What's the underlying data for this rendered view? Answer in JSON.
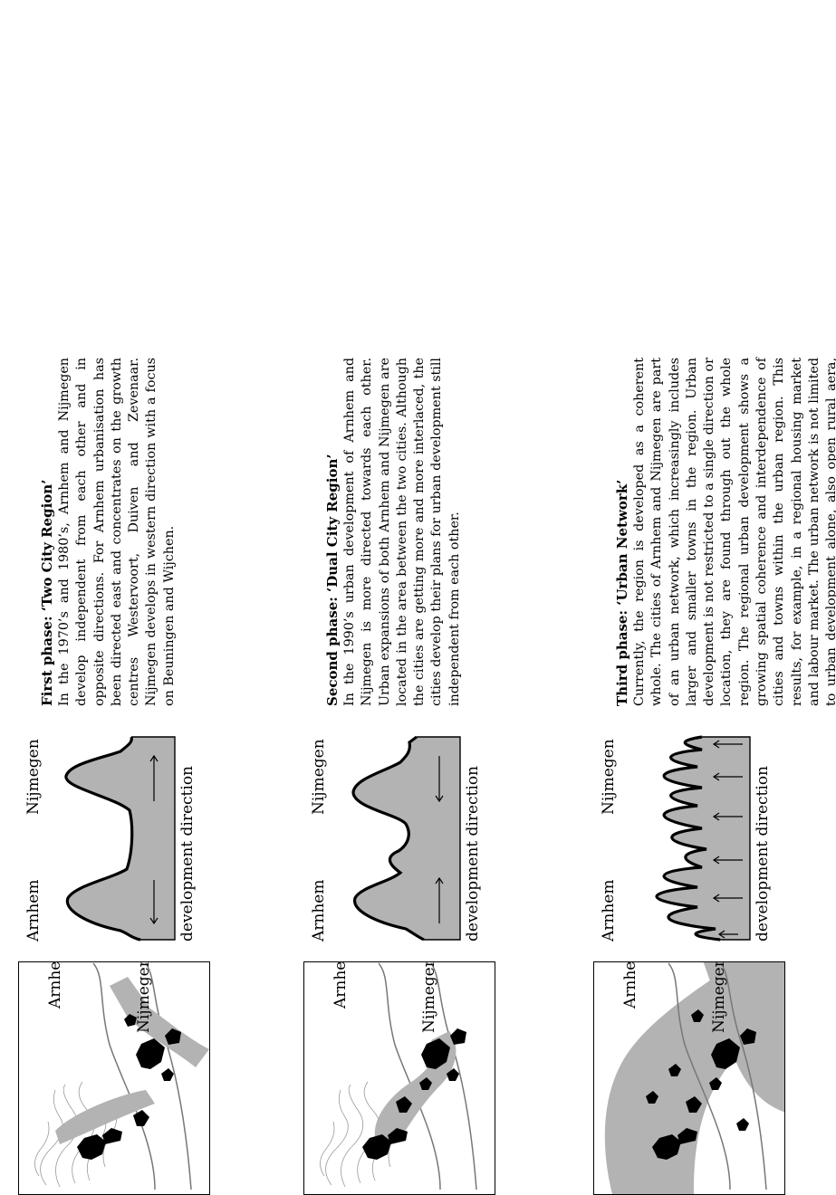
{
  "phases": [
    {
      "title": "First phase: ‘Two City Region’",
      "text": "In the 1970’s and 1980’s, Arnhem and Nijmegen develop independent from each other and in opposite directions. For Arnhem urbanisation has been directed east and concentrates on the growth centres Westervoort, Duiven and Zevenaar. Nijmegen develops in western direction with a focus on Beuningen and Wijchen.",
      "map_labels": [
        "Arnhem",
        "Nijmegen"
      ],
      "profile_labels": [
        "Arnhem",
        "Nijmegen"
      ],
      "caption": "development direction"
    },
    {
      "title": "Second phase: ‘Dual City Region’",
      "text": "In the 1990’s urban development of Arnhem and Nijmegen is more directed towards each other. Urban expansions of both Arnhem and Nijmegen are located in the area between the two cities. Although the cities are getting more and more interlaced, the cities develop their plans for urban development still independent from each other.",
      "map_labels": [
        "Arnhem",
        "Nijmegen"
      ],
      "profile_labels": [
        "Arnhem",
        "Nijmegen"
      ],
      "caption": "development direction"
    },
    {
      "title": "Third phase: ‘Urban Network’",
      "text": "Currently, the region is developed as a coherent whole. The cities of Arnhem and Nijmegen are part of an urban network, which increasingly includes larger and smaller towns in the region. Urban development is not restricted to a single direction or location, they are found through out the whole region. The regional urban development shows a growing spatial coherence and interdependence of cities and towns within the urban region. This results, for example, in a regional housing market and labour market. The urban network is not limited to urban development alone, also open rural aera, and valuable green spaces and wetlands are an intergral part of the urban network.",
      "map_labels": [
        "Arnhem",
        "Nijmegen"
      ],
      "profile_labels": [
        "Arnhem",
        "Nijmegen"
      ],
      "caption": "development direction"
    }
  ],
  "colors": {
    "shade": "#b3b3b3",
    "urban": "#000000",
    "contour": "#9a9a9a"
  }
}
